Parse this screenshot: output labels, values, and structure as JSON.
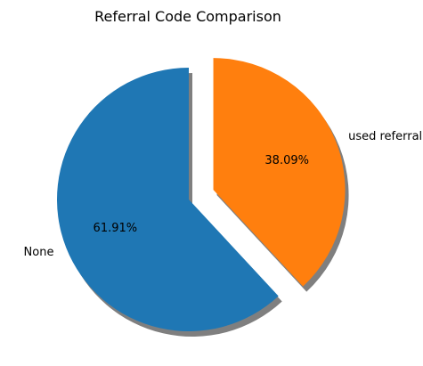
{
  "chart_data": {
    "type": "pie",
    "title": "Referral Code Comparison",
    "slices": [
      {
        "label": "None",
        "value": 61.91,
        "value_label": "61.91%",
        "color": "#1f77b4",
        "explode": 0.0
      },
      {
        "label": "used referral",
        "value": 38.09,
        "value_label": "38.09%",
        "color": "#ff7f0e",
        "explode": 0.2
      }
    ],
    "start_angle_deg": 90,
    "shadow": true
  }
}
